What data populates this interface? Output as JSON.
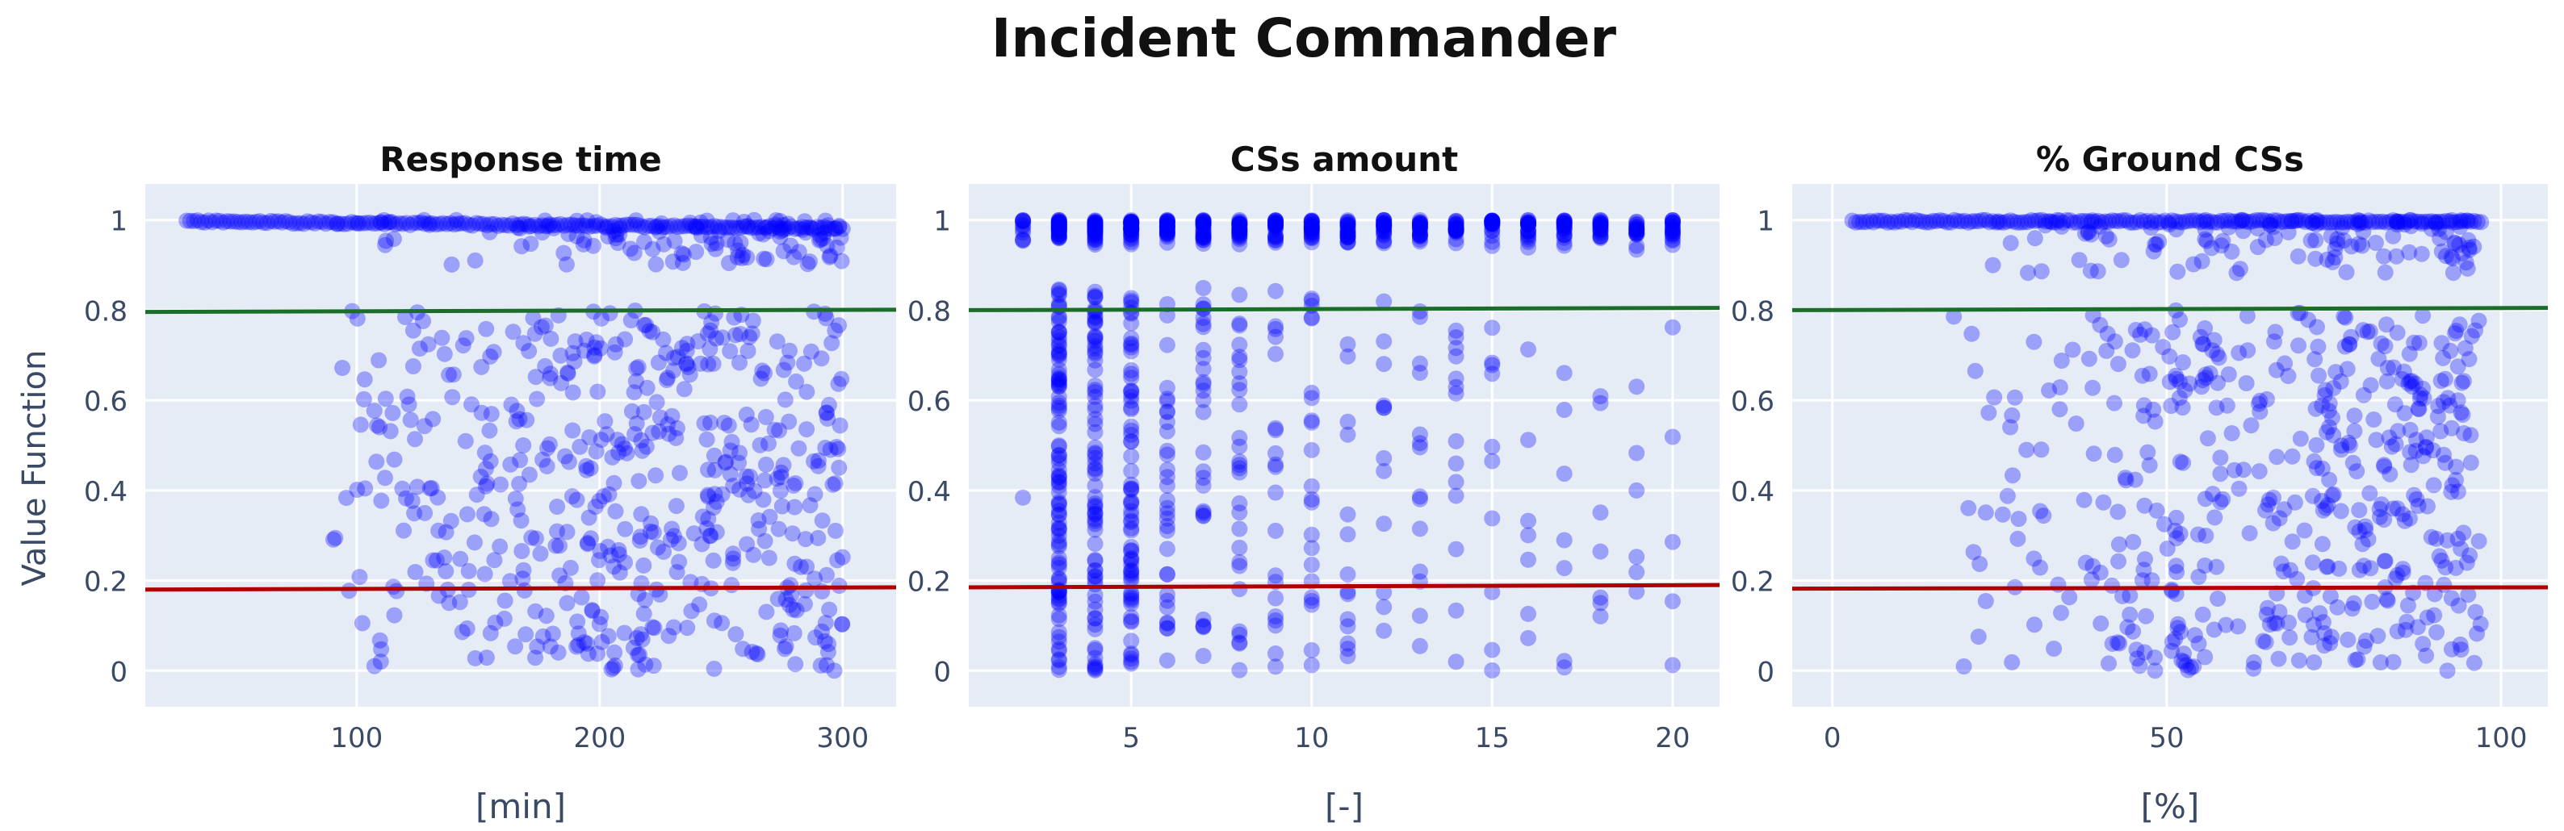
{
  "title": "Incident Commander",
  "ylabel": "Value Function",
  "colors": {
    "points": "#0000ff",
    "upper_line": "#1b6e2a",
    "lower_line": "#b00000",
    "plot_bg": "#e5ecf6",
    "grid": "#ffffff"
  },
  "chart_data": [
    {
      "type": "scatter",
      "title": "Response time",
      "xlabel": "[min]",
      "ylabel": "Value Function",
      "xlim": [
        13,
        322
      ],
      "ylim": [
        -0.08,
        1.08
      ],
      "xticks": [
        100,
        200,
        300
      ],
      "yticks": [
        0,
        0.2,
        0.4,
        0.6,
        0.8,
        1
      ],
      "ytick_labels": [
        "0",
        "0.2",
        "0.4",
        "0.6",
        "0.8",
        "1"
      ],
      "grid": true,
      "reference_lines": {
        "upper": [
          0.796,
          0.801
        ],
        "lower": [
          0.18,
          0.185
        ]
      },
      "top_band": {
        "x": [
          30,
          300
        ],
        "y": [
          1.0,
          0.985
        ]
      },
      "top_spread": {
        "x": [
          90,
          300
        ],
        "y": [
          0.9,
          1.0
        ]
      },
      "scatter": {
        "x": [
          88,
          300
        ],
        "y": [
          0.0,
          0.8
        ],
        "n": 520,
        "seed": 11,
        "dist": "rightheavy"
      }
    },
    {
      "type": "scatter",
      "title": "CSs amount",
      "xlabel": "[-]",
      "ylabel": "",
      "xlim": [
        0.5,
        21.3
      ],
      "ylim": [
        -0.08,
        1.08
      ],
      "xticks": [
        5,
        10,
        15,
        20
      ],
      "yticks": [
        0,
        0.2,
        0.4,
        0.6,
        0.8,
        1
      ],
      "ytick_labels": [
        "0",
        "0.2",
        "0.4",
        "0.6",
        "0.8",
        "1"
      ],
      "grid": true,
      "reference_lines": {
        "upper": [
          0.8,
          0.805
        ],
        "lower": [
          0.185,
          0.19
        ]
      },
      "discrete_x": [
        2,
        3,
        4,
        5,
        6,
        7,
        8,
        9,
        10,
        11,
        12,
        13,
        14,
        15,
        16,
        17,
        18,
        19,
        20
      ],
      "per_x_counts": [
        1,
        95,
        75,
        70,
        32,
        28,
        28,
        20,
        22,
        14,
        12,
        14,
        14,
        10,
        7,
        7,
        7,
        6,
        5
      ],
      "top_counts": [
        12,
        40,
        36,
        34,
        28,
        28,
        28,
        26,
        26,
        24,
        24,
        24,
        24,
        22,
        22,
        22,
        22,
        20,
        20
      ],
      "top_range": [
        0.93,
        1.0
      ]
    },
    {
      "type": "scatter",
      "title": "% Ground CSs",
      "xlabel": "[%]",
      "ylabel": "",
      "xlim": [
        -6,
        107
      ],
      "ylim": [
        -0.08,
        1.08
      ],
      "xticks": [
        0,
        50,
        100
      ],
      "yticks": [
        0,
        0.2,
        0.4,
        0.6,
        0.8,
        1
      ],
      "ytick_labels": [
        "0",
        "0.2",
        "0.4",
        "0.6",
        "0.8",
        "1"
      ],
      "grid": true,
      "reference_lines": {
        "upper": [
          0.8,
          0.805
        ],
        "lower": [
          0.182,
          0.185
        ]
      },
      "top_band": {
        "x": [
          3,
          97
        ],
        "y": [
          1.0,
          1.0
        ]
      },
      "top_spread": {
        "x": [
          20,
          97
        ],
        "y": [
          0.88,
          1.0
        ]
      },
      "scatter": {
        "x": [
          15,
          97
        ],
        "y": [
          0.0,
          0.8
        ],
        "n": 470,
        "seed": 29,
        "dist": "rightheavy2"
      }
    }
  ]
}
